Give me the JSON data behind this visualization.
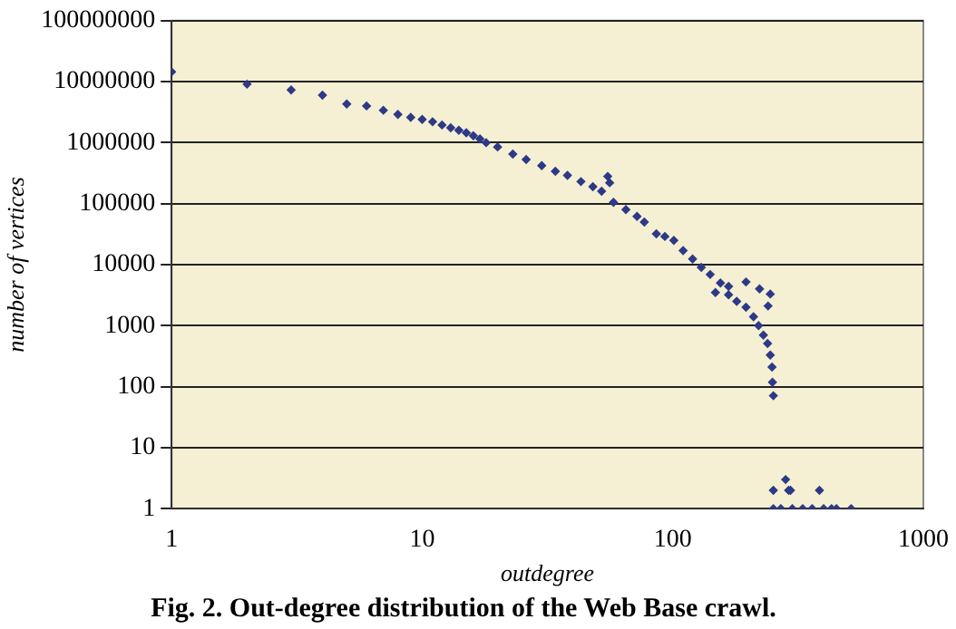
{
  "chart_data": {
    "type": "scatter",
    "title": "Fig. 2. Out-degree distribution of the Web Base crawl.",
    "xlabel": "outdegree",
    "ylabel": "number of vertices",
    "x": [
      1,
      2,
      3,
      4,
      5,
      6,
      7,
      8,
      9,
      10,
      11,
      12,
      13,
      14,
      15,
      16,
      17,
      18,
      20,
      23,
      26,
      30,
      34,
      38,
      43,
      48,
      52,
      55,
      56,
      58,
      65,
      72,
      77,
      86,
      93,
      101,
      110,
      120,
      130,
      141,
      148,
      155,
      167,
      167,
      180,
      196,
      196,
      210,
      220,
      222,
      230,
      239,
      240,
      245,
      245,
      249,
      250,
      252,
      252,
      252,
      270,
      282,
      290,
      295,
      300,
      330,
      360,
      385,
      400,
      430,
      450,
      515
    ],
    "series": [
      {
        "color": "#2e3a87",
        "values": [
          14500000,
          9100000,
          7300000,
          6000000,
          4300000,
          4000000,
          3400000,
          2900000,
          2600000,
          2400000,
          2200000,
          1950000,
          1750000,
          1600000,
          1450000,
          1300000,
          1150000,
          1000000,
          850000,
          650000,
          530000,
          420000,
          340000,
          290000,
          230000,
          190000,
          160000,
          280000,
          220000,
          105000,
          80000,
          62000,
          50000,
          32000,
          29000,
          25000,
          17000,
          12400,
          9000,
          6900,
          3500,
          5000,
          3200,
          4400,
          2500,
          2000,
          5200,
          1400,
          1000,
          4000,
          700,
          510,
          2100,
          3300,
          330,
          210,
          118,
          71,
          1,
          2,
          1,
          3,
          2,
          2,
          1,
          1,
          1,
          2,
          1,
          1,
          1,
          1
        ]
      }
    ],
    "xlim": [
      1,
      1000
    ],
    "xticks": [
      1,
      10,
      100,
      1000
    ],
    "ylim": [
      1,
      100000000
    ],
    "yticks": [
      1,
      10,
      100,
      1000,
      10000,
      100000,
      1000000,
      10000000,
      100000000
    ],
    "log": "xy",
    "grid": "y",
    "marker": "diamond"
  }
}
